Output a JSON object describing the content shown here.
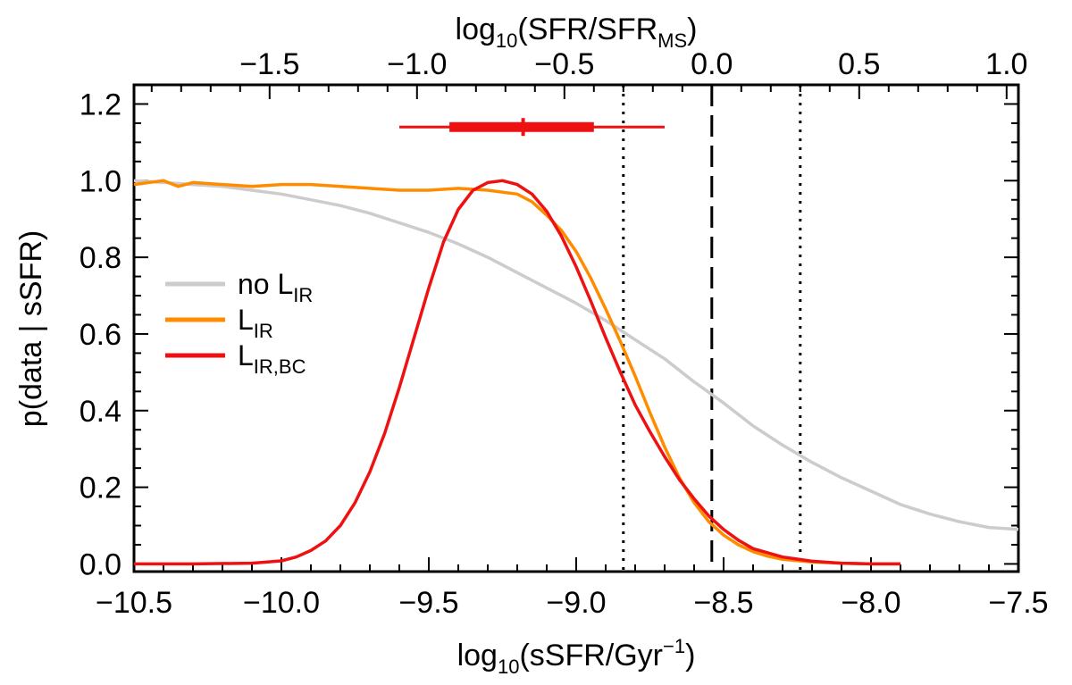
{
  "chart_data": {
    "type": "line",
    "x_range": [
      -10.5,
      -7.5
    ],
    "y_range": [
      -0.02,
      1.25
    ],
    "x_ticks": [
      -10.5,
      -10.0,
      -9.5,
      -9.0,
      -8.5,
      -8.0,
      -7.5
    ],
    "x_tick_labels": [
      "−10.5",
      "−10.0",
      "−9.5",
      "−9.0",
      "−8.5",
      "−8.0",
      "−7.5"
    ],
    "y_ticks": [
      0.0,
      0.2,
      0.4,
      0.6,
      0.8,
      1.0,
      1.2
    ],
    "y_tick_labels": [
      "0.0",
      "0.2",
      "0.4",
      "0.6",
      "0.8",
      "1.0",
      "1.2"
    ],
    "top_axis": {
      "offset_sSFR_MS": -8.54,
      "ticks": [
        -1.5,
        -1.0,
        -0.5,
        0.0,
        0.5,
        1.0
      ],
      "tick_labels": [
        "−1.5",
        "−1.0",
        "−0.5",
        "0.0",
        "0.5",
        "1.0"
      ]
    },
    "xlabel": {
      "main": "log",
      "sub": "10",
      "text": "(sSFR/Gyr",
      "sup": "−1",
      "close": ")"
    },
    "ylabel": "p(data | sSFR)",
    "toplabel": {
      "main": "log",
      "sub": "10",
      "text": "(SFR/SFR",
      "sub2": "MS",
      "close": ")"
    },
    "series": [
      {
        "name": "no L_IR",
        "label_main": "no L",
        "label_sub": "IR",
        "color": "#cccccc",
        "x": [
          -10.5,
          -10.4,
          -10.3,
          -10.2,
          -10.1,
          -10.0,
          -9.9,
          -9.8,
          -9.7,
          -9.6,
          -9.5,
          -9.4,
          -9.3,
          -9.2,
          -9.1,
          -9.0,
          -8.9,
          -8.8,
          -8.7,
          -8.6,
          -8.5,
          -8.4,
          -8.3,
          -8.2,
          -8.1,
          -8.0,
          -7.9,
          -7.8,
          -7.7,
          -7.6,
          -7.5
        ],
        "values": [
          1.0,
          0.995,
          0.99,
          0.985,
          0.975,
          0.965,
          0.95,
          0.935,
          0.915,
          0.89,
          0.865,
          0.835,
          0.8,
          0.76,
          0.72,
          0.68,
          0.635,
          0.585,
          0.535,
          0.475,
          0.42,
          0.36,
          0.31,
          0.265,
          0.225,
          0.19,
          0.155,
          0.13,
          0.11,
          0.095,
          0.09
        ]
      },
      {
        "name": "L_IR",
        "label_main": "L",
        "label_sub": "IR",
        "color": "#ff8c00",
        "x": [
          -10.5,
          -10.45,
          -10.4,
          -10.35,
          -10.3,
          -10.2,
          -10.1,
          -10.0,
          -9.9,
          -9.8,
          -9.7,
          -9.6,
          -9.5,
          -9.4,
          -9.3,
          -9.25,
          -9.2,
          -9.15,
          -9.1,
          -9.05,
          -9.0,
          -8.95,
          -8.9,
          -8.85,
          -8.8,
          -8.75,
          -8.7,
          -8.65,
          -8.6,
          -8.55,
          -8.5,
          -8.45,
          -8.4,
          -8.35,
          -8.3,
          -8.2,
          -8.1,
          -8.0,
          -7.9
        ],
        "values": [
          0.99,
          0.995,
          1.0,
          0.985,
          0.995,
          0.99,
          0.985,
          0.99,
          0.99,
          0.985,
          0.98,
          0.975,
          0.975,
          0.98,
          0.975,
          0.97,
          0.965,
          0.945,
          0.91,
          0.87,
          0.815,
          0.745,
          0.665,
          0.58,
          0.49,
          0.395,
          0.305,
          0.225,
          0.16,
          0.11,
          0.075,
          0.05,
          0.032,
          0.02,
          0.012,
          0.005,
          0.002,
          0.0,
          0.0
        ]
      },
      {
        "name": "L_IR,BC",
        "label_main": "L",
        "label_sub": "IR,BC",
        "color": "#ee1111",
        "x": [
          -10.5,
          -10.3,
          -10.1,
          -10.0,
          -9.95,
          -9.9,
          -9.85,
          -9.8,
          -9.75,
          -9.7,
          -9.65,
          -9.6,
          -9.55,
          -9.5,
          -9.45,
          -9.4,
          -9.35,
          -9.3,
          -9.25,
          -9.2,
          -9.15,
          -9.1,
          -9.05,
          -9.0,
          -8.95,
          -8.9,
          -8.85,
          -8.8,
          -8.75,
          -8.7,
          -8.65,
          -8.6,
          -8.55,
          -8.5,
          -8.45,
          -8.4,
          -8.3,
          -8.2,
          -8.1,
          -8.0,
          -7.9
        ],
        "values": [
          0.0,
          0.0,
          0.002,
          0.008,
          0.018,
          0.035,
          0.06,
          0.1,
          0.16,
          0.24,
          0.34,
          0.46,
          0.59,
          0.72,
          0.84,
          0.925,
          0.975,
          0.995,
          1.0,
          0.99,
          0.965,
          0.92,
          0.855,
          0.775,
          0.685,
          0.59,
          0.5,
          0.415,
          0.345,
          0.28,
          0.22,
          0.17,
          0.125,
          0.09,
          0.062,
          0.04,
          0.018,
          0.007,
          0.002,
          0.0,
          0.0
        ]
      }
    ],
    "vertical_lines": [
      {
        "x": -8.54,
        "style": "dashed"
      },
      {
        "x": -8.84,
        "style": "dotted"
      },
      {
        "x": -8.24,
        "style": "dotted"
      }
    ],
    "error_bar": {
      "y": 1.14,
      "center": -9.18,
      "inner_low": -9.43,
      "inner_high": -8.94,
      "outer_low": -9.6,
      "outer_high": -8.7,
      "color": "#ee1111"
    },
    "legend_position": "left-middle"
  }
}
